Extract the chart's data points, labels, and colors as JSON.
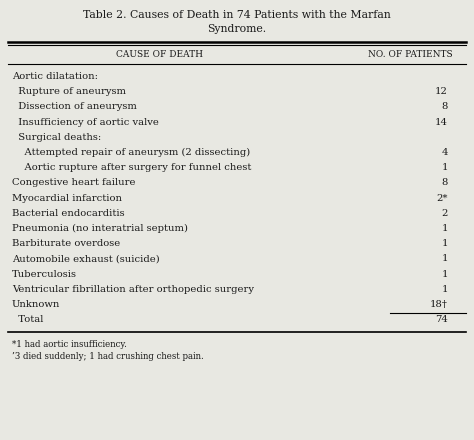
{
  "title_line1": "Table 2. Causes of Death in 74 Patients with the Marfan",
  "title_line2": "Syndrome.",
  "col1_header": "Cause of Death",
  "col2_header": "No. of Patients",
  "rows": [
    {
      "text": "Aortic dilatation:",
      "value": "",
      "indent": 0
    },
    {
      "text": "  Rupture of aneurysm",
      "value": "12",
      "indent": 1
    },
    {
      "text": "  Dissection of aneurysm",
      "value": "8",
      "indent": 1
    },
    {
      "text": "  Insufficiency of aortic valve",
      "value": "14",
      "indent": 1
    },
    {
      "text": "  Surgical deaths:",
      "value": "",
      "indent": 1
    },
    {
      "text": "    Attempted repair of aneurysm (2 dissecting)",
      "value": "4",
      "indent": 2
    },
    {
      "text": "    Aortic rupture after surgery for funnel chest",
      "value": "1",
      "indent": 2
    },
    {
      "text": "Congestive heart failure",
      "value": "8",
      "indent": 0
    },
    {
      "text": "Myocardial infarction",
      "value": "2*",
      "indent": 0
    },
    {
      "text": "Bacterial endocarditis",
      "value": "2",
      "indent": 0
    },
    {
      "text": "Pneumonia (no interatrial septum)",
      "value": "1",
      "indent": 0
    },
    {
      "text": "Barbiturate overdose",
      "value": "1",
      "indent": 0
    },
    {
      "text": "Automobile exhaust (suicide)",
      "value": "1",
      "indent": 0
    },
    {
      "text": "Tuberculosis",
      "value": "1",
      "indent": 0
    },
    {
      "text": "Ventricular fibrillation after orthopedic surgery",
      "value": "1",
      "indent": 0
    },
    {
      "text": "Unknown",
      "value": "18†",
      "indent": 0
    },
    {
      "text": "  Total",
      "value": "74",
      "indent": 1,
      "overline": true
    }
  ],
  "footnote1": "*1 had aortic insufficiency.",
  "footnote2": "‘3 died suddenly; 1 had crushing chest pain.",
  "bg_color": "#e8e8e2",
  "text_color": "#1a1a1a",
  "title_fontsize": 7.8,
  "header_fontsize": 6.5,
  "row_fontsize": 7.2,
  "footnote_fontsize": 6.2
}
